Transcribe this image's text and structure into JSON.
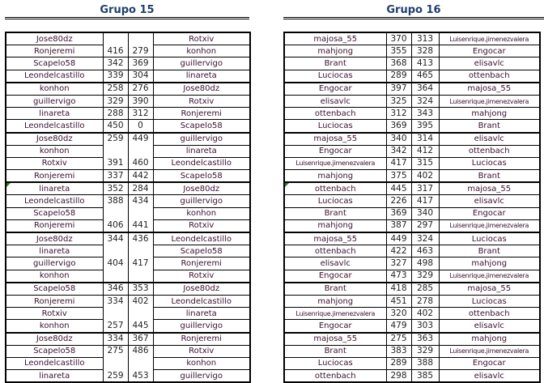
{
  "groups": [
    {
      "title": "Grupo 15",
      "rounds": [
        [
          [
            "Jose80dz",
            "",
            "",
            "Rotxiv"
          ],
          [
            "Ronjeremi",
            "416",
            "279",
            "konhon"
          ],
          [
            "Scapelo58",
            "342",
            "369",
            "guillervigo"
          ],
          [
            "Leondelcastillo",
            "339",
            "304",
            "linareta"
          ]
        ],
        [
          [
            "konhon",
            "258",
            "276",
            "Jose80dz"
          ],
          [
            "guillervigo",
            "329",
            "390",
            "Rotxiv"
          ],
          [
            "linareta",
            "288",
            "312",
            "Ronjeremi"
          ],
          [
            "Leondelcastillo",
            "450",
            "0",
            "Scapelo58"
          ]
        ],
        [
          [
            "Jose80dz",
            "259",
            "449",
            "guillervigo"
          ],
          [
            "konhon",
            "",
            "",
            "linareta"
          ],
          [
            "Rotxiv",
            "391",
            "460",
            "Leondelcastillo"
          ],
          [
            "Ronjeremi",
            "337",
            "442",
            "Scapelo58"
          ]
        ],
        [
          [
            "linareta",
            "352",
            "284",
            "Jose80dz"
          ],
          [
            "Leondelcastillo",
            "388",
            "434",
            "guillervigo"
          ],
          [
            "Scapelo58",
            "",
            "",
            "konhon"
          ],
          [
            "Ronjeremi",
            "406",
            "441",
            "Rotxiv"
          ]
        ],
        [
          [
            "Jose80dz",
            "344",
            "436",
            "Leondelcastillo"
          ],
          [
            "linareta",
            "",
            "",
            "Scapelo58"
          ],
          [
            "guillervigo",
            "404",
            "417",
            "Ronjeremi"
          ],
          [
            "konhon",
            "",
            "",
            "Rotxiv"
          ]
        ],
        [
          [
            "Scapelo58",
            "346",
            "353",
            "Jose80dz"
          ],
          [
            "Ronjeremi",
            "334",
            "402",
            "Leondelcastillo"
          ],
          [
            "Rotxiv",
            "",
            "",
            "linareta"
          ],
          [
            "konhon",
            "257",
            "445",
            "guillervigo"
          ]
        ],
        [
          [
            "Jose80dz",
            "334",
            "367",
            "Ronjeremi"
          ],
          [
            "Scapelo58",
            "275",
            "486",
            "Rotxiv"
          ],
          [
            "Leondelcastillo",
            "",
            "",
            "konhon"
          ],
          [
            "linareta",
            "259",
            "453",
            "guillervigo"
          ]
        ]
      ]
    },
    {
      "title": "Grupo 16",
      "rounds": [
        [
          [
            "majosa_55",
            "370",
            "313",
            "Luisenrique.jimenezvalera"
          ],
          [
            "mahjong",
            "355",
            "328",
            "Engocar"
          ],
          [
            "Brant",
            "368",
            "413",
            "elisavlc"
          ],
          [
            "Luciocas",
            "289",
            "465",
            "ottenbach"
          ]
        ],
        [
          [
            "Engocar",
            "397",
            "364",
            "majosa_55"
          ],
          [
            "elisavlc",
            "325",
            "324",
            "Luisenrique.jimenezvalera"
          ],
          [
            "ottenbach",
            "312",
            "343",
            "mahjong"
          ],
          [
            "Luciocas",
            "369",
            "395",
            "Brant"
          ]
        ],
        [
          [
            "majosa_55",
            "340",
            "314",
            "elisavlc"
          ],
          [
            "Engocar",
            "342",
            "412",
            "ottenbach"
          ],
          [
            "Luisenrique.jimenezvalera",
            "417",
            "315",
            "Luciocas"
          ],
          [
            "mahjong",
            "375",
            "402",
            "Brant"
          ]
        ],
        [
          [
            "ottenbach",
            "445",
            "317",
            "majosa_55"
          ],
          [
            "Luciocas",
            "226",
            "417",
            "elisavlc"
          ],
          [
            "Brant",
            "369",
            "340",
            "Engocar"
          ],
          [
            "mahjong",
            "387",
            "297",
            "Luisenrique.jimenezvalera"
          ]
        ],
        [
          [
            "majosa_55",
            "449",
            "324",
            "Luciocas"
          ],
          [
            "ottenbach",
            "422",
            "463",
            "Brant"
          ],
          [
            "elisavlc",
            "327",
            "498",
            "mahjong"
          ],
          [
            "Engocar",
            "473",
            "329",
            "Luisenrique.jimenezvalera"
          ]
        ],
        [
          [
            "Brant",
            "418",
            "285",
            "majosa_55"
          ],
          [
            "mahjong",
            "451",
            "278",
            "Luciocas"
          ],
          [
            "Luisenrique.jimenezvalera",
            "320",
            "402",
            "ottenbach"
          ],
          [
            "Engocar",
            "479",
            "303",
            "elisavlc"
          ]
        ],
        [
          [
            "majosa_55",
            "275",
            "363",
            "mahjong"
          ],
          [
            "Brant",
            "383",
            "329",
            "Luisenrique.jimenezvalera"
          ],
          [
            "Luciocas",
            "289",
            "388",
            "Engocar"
          ],
          [
            "ottenbach",
            "298",
            "385",
            "elisavlc"
          ]
        ]
      ]
    }
  ],
  "colors": {
    "title": "#1f3f6e",
    "player_text": "#3a1030",
    "comment_marker": "#1a8a1a"
  }
}
